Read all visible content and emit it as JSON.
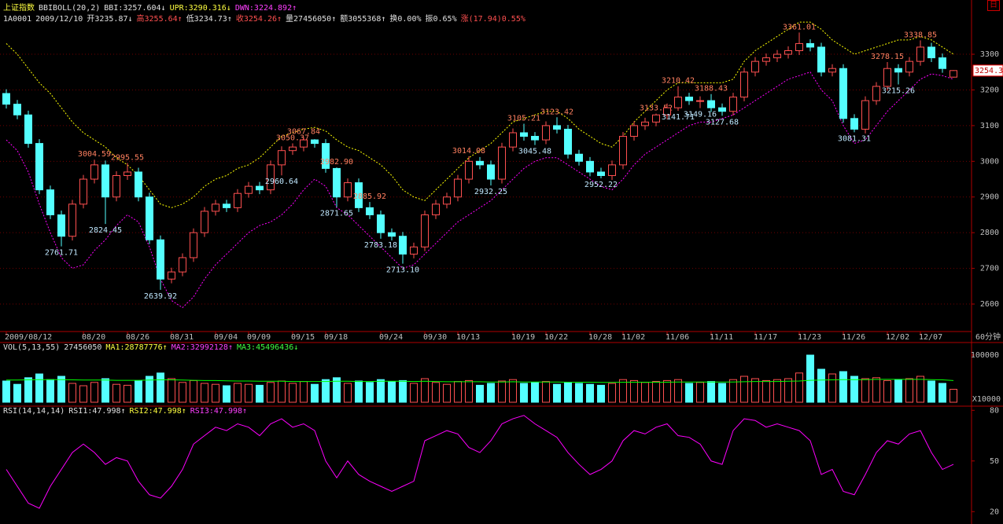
{
  "header": {
    "line1": [
      "上证指数",
      "BBIBOLL(20,2)",
      "BBI:3257.604↓",
      "UPR:3290.316↓",
      "DWN:3224.892↑"
    ],
    "line2": [
      "1A0001",
      "2009/12/10",
      "开3235.87↓",
      "高3255.64↑",
      "低3234.73↑",
      "收3254.26↑",
      "量27456050↑",
      "额3055368↑",
      "换0.00%",
      "振0.65%",
      "涨(17.94)0.55%"
    ],
    "vol": [
      "VOL(5,13,55)",
      "27456050",
      "MA1:28787776↑",
      "MA2:32992128↑",
      "MA3:45496436↓"
    ],
    "rsi": [
      "RSI(14,14,14)",
      "RSI1:47.998↑",
      "RSI2:47.998↑",
      "RSI3:47.998↑"
    ],
    "icon": "日"
  },
  "chart_data": [
    {
      "type": "candlestick",
      "period": "60分钟",
      "last_label": "3254.3",
      "up_color": "#ff5050",
      "down_color": "#54ffff",
      "categories": [
        "2009/08/12",
        null,
        null,
        null,
        null,
        null,
        null,
        "08/20",
        null,
        null,
        null,
        "08/26",
        null,
        null,
        null,
        "08/31",
        null,
        null,
        null,
        "09/04",
        null,
        null,
        "09/09",
        null,
        null,
        null,
        "09/15",
        null,
        null,
        "09/18",
        null,
        null,
        null,
        null,
        "09/24",
        null,
        null,
        null,
        "09/30",
        null,
        null,
        "10/13",
        null,
        null,
        null,
        null,
        "10/19",
        null,
        null,
        "10/22",
        null,
        null,
        null,
        "10/28",
        null,
        null,
        "11/02",
        null,
        null,
        null,
        "11/06",
        null,
        null,
        null,
        "11/11",
        null,
        null,
        null,
        "11/17",
        null,
        null,
        null,
        "11/23",
        null,
        null,
        null,
        "11/26",
        null,
        null,
        null,
        "12/02",
        null,
        null,
        "12/07",
        null,
        null,
        null
      ],
      "open": [
        3190,
        3160,
        3130,
        3050,
        2920,
        2850,
        2790,
        2880,
        2950,
        2990,
        2900,
        2960,
        2970,
        2900,
        2780,
        2670,
        2690,
        2730,
        2800,
        2860,
        2880,
        2870,
        2910,
        2930,
        2920,
        2990,
        3030,
        3040,
        3060,
        3050,
        2980,
        2900,
        2940,
        2870,
        2850,
        2800,
        2790,
        2740,
        2760,
        2850,
        2880,
        2900,
        2950,
        3000,
        2990,
        2950,
        3040,
        3080,
        3070,
        3060,
        3100,
        3090,
        3020,
        3000,
        2970,
        2960,
        2990,
        3070,
        3100,
        3110,
        3130,
        3150,
        3180,
        3170,
        3170,
        3150,
        3140,
        3180,
        3250,
        3280,
        3290,
        3300,
        3310,
        3330,
        3320,
        3250,
        3260,
        3120,
        3090,
        3170,
        3210,
        3260,
        3250,
        3280,
        3320,
        3290,
        3235.87
      ],
      "high": [
        3202,
        3172,
        3142,
        3062,
        2932,
        2862,
        2892,
        2962,
        3004.59,
        3002,
        2972,
        2995.55,
        2982,
        2912,
        2792,
        2702,
        2742,
        2812,
        2872,
        2892,
        2892,
        2922,
        2942,
        2942,
        3002,
        3042,
        3050.37,
        3067.84,
        3062,
        3062,
        2982.9,
        2952,
        2952,
        2885.92,
        2862,
        2812,
        2802,
        2772,
        2862,
        2892,
        2912,
        2962,
        3014.08,
        3012,
        3002,
        3052,
        3092,
        3105.21,
        3082,
        3112,
        3123.42,
        3102,
        3032,
        3012,
        2982,
        3002,
        3082,
        3112,
        3122,
        3133.52,
        3162,
        3210.42,
        3192,
        3182,
        3188.43,
        3162,
        3192,
        3262,
        3292,
        3302,
        3312,
        3322,
        3361.01,
        3342,
        3332,
        3272,
        3272,
        3132,
        3182,
        3222,
        3278.15,
        3272,
        3292,
        3338.85,
        3332,
        3302,
        3255.64
      ],
      "low": [
        3148,
        3118,
        3038,
        2908,
        2838,
        2761.71,
        2778,
        2868,
        2938,
        2824.45,
        2888,
        2948,
        2888,
        2768,
        2639.92,
        2658,
        2678,
        2718,
        2788,
        2848,
        2858,
        2858,
        2898,
        2908,
        2908,
        2960.64,
        3018,
        3028,
        3038,
        2968,
        2871.65,
        2888,
        2858,
        2838,
        2783.18,
        2778,
        2713.1,
        2728,
        2748,
        2838,
        2868,
        2888,
        2938,
        2978,
        2932.25,
        2938,
        3028,
        3058,
        3045.48,
        3048,
        3078,
        3008,
        2988,
        2958,
        2952.22,
        2948,
        2978,
        3058,
        3088,
        3098,
        3118,
        3141.71,
        3158,
        3149.16,
        3138,
        3127.68,
        3128,
        3168,
        3238,
        3268,
        3278,
        3288,
        3298,
        3308,
        3238,
        3238,
        3108,
        3081.31,
        3078,
        3158,
        3198,
        3215.26,
        3238,
        3268,
        3278,
        3248,
        3234.73
      ],
      "close": [
        3160,
        3130,
        3050,
        2920,
        2850,
        2790,
        2880,
        2950,
        2990,
        2900,
        2960,
        2970,
        2900,
        2780,
        2670,
        2690,
        2730,
        2800,
        2860,
        2880,
        2870,
        2910,
        2930,
        2920,
        2990,
        3030,
        3040,
        3060,
        3050,
        2980,
        2900,
        2940,
        2870,
        2850,
        2800,
        2790,
        2740,
        2760,
        2850,
        2880,
        2900,
        2950,
        3000,
        2990,
        2950,
        3040,
        3080,
        3070,
        3060,
        3100,
        3090,
        3020,
        3000,
        2970,
        2960,
        2990,
        3070,
        3100,
        3110,
        3130,
        3150,
        3180,
        3170,
        3170,
        3150,
        3140,
        3180,
        3250,
        3280,
        3290,
        3300,
        3310,
        3330,
        3320,
        3250,
        3260,
        3120,
        3090,
        3170,
        3210,
        3260,
        3250,
        3280,
        3320,
        3290,
        3260,
        3254.26
      ],
      "high_labels": [
        null,
        null,
        null,
        null,
        null,
        null,
        null,
        null,
        "3004.59",
        null,
        null,
        "2995.55",
        null,
        null,
        null,
        null,
        null,
        null,
        null,
        null,
        null,
        null,
        null,
        null,
        null,
        null,
        "3050.37",
        "3067.84",
        null,
        null,
        "2982.90",
        null,
        null,
        "2885.92",
        null,
        null,
        null,
        null,
        null,
        null,
        null,
        null,
        "3014.08",
        null,
        null,
        null,
        null,
        "3105.21",
        null,
        null,
        "3123.42",
        null,
        null,
        null,
        null,
        null,
        null,
        null,
        null,
        "3133.52",
        null,
        "3210.42",
        null,
        null,
        "3188.43",
        null,
        null,
        null,
        null,
        null,
        null,
        null,
        "3361.01",
        null,
        null,
        null,
        null,
        null,
        null,
        null,
        "3278.15",
        null,
        null,
        "3338.85",
        null,
        null,
        null
      ],
      "low_labels": [
        null,
        null,
        null,
        null,
        null,
        "2761.71",
        null,
        null,
        null,
        "2824.45",
        null,
        null,
        null,
        null,
        "2639.92",
        null,
        null,
        null,
        null,
        null,
        null,
        null,
        null,
        null,
        null,
        "2960.64",
        null,
        null,
        null,
        null,
        "2871.65",
        null,
        null,
        null,
        "2783.18",
        null,
        "2713.10",
        null,
        null,
        null,
        null,
        null,
        null,
        null,
        "2932.25",
        null,
        null,
        null,
        "3045.48",
        null,
        null,
        null,
        null,
        null,
        "2952.22",
        null,
        null,
        null,
        null,
        null,
        null,
        "3141.71",
        null,
        "3149.16",
        null,
        "3127.68",
        null,
        null,
        null,
        null,
        null,
        null,
        null,
        null,
        null,
        null,
        null,
        "3081.31",
        null,
        null,
        null,
        "3215.26",
        null,
        null,
        null,
        null,
        null
      ],
      "series": [
        {
          "color": "#ffff00",
          "values": [
            3330,
            3300,
            3260,
            3220,
            3190,
            3150,
            3110,
            3080,
            3060,
            3040,
            3010,
            2990,
            2960,
            2920,
            2880,
            2870,
            2880,
            2900,
            2930,
            2950,
            2960,
            2980,
            2990,
            3010,
            3040,
            3070,
            3080,
            3090,
            3095,
            3085,
            3060,
            3040,
            3030,
            3010,
            2990,
            2960,
            2920,
            2900,
            2890,
            2920,
            2950,
            2980,
            3010,
            3030,
            3050,
            3080,
            3110,
            3120,
            3130,
            3140,
            3140,
            3120,
            3090,
            3070,
            3050,
            3040,
            3070,
            3110,
            3140,
            3170,
            3200,
            3220,
            3220,
            3220,
            3220,
            3220,
            3230,
            3280,
            3310,
            3330,
            3350,
            3370,
            3390,
            3390,
            3370,
            3340,
            3320,
            3300,
            3310,
            3320,
            3330,
            3340,
            3340,
            3350,
            3340,
            3320,
            3300
          ]
        },
        {
          "color": "#ff00ff",
          "values": [
            3060,
            3030,
            2970,
            2880,
            2800,
            2730,
            2700,
            2710,
            2750,
            2780,
            2820,
            2850,
            2830,
            2760,
            2670,
            2610,
            2590,
            2620,
            2670,
            2710,
            2740,
            2770,
            2800,
            2820,
            2830,
            2850,
            2880,
            2920,
            2950,
            2930,
            2870,
            2850,
            2820,
            2790,
            2760,
            2730,
            2700,
            2710,
            2740,
            2770,
            2800,
            2830,
            2850,
            2870,
            2890,
            2920,
            2950,
            2980,
            3000,
            3010,
            3010,
            2990,
            2970,
            2950,
            2930,
            2920,
            2950,
            2990,
            3020,
            3040,
            3060,
            3080,
            3100,
            3110,
            3110,
            3120,
            3130,
            3150,
            3170,
            3190,
            3210,
            3230,
            3240,
            3250,
            3200,
            3170,
            3100,
            3050,
            3060,
            3100,
            3140,
            3170,
            3200,
            3230,
            3245,
            3240,
            3230
          ]
        }
      ],
      "ylim": [
        2523,
        3452
      ],
      "yticks": [
        2600,
        2700,
        2800,
        2900,
        3000,
        3100,
        3200,
        3300
      ],
      "grid": true
    },
    {
      "type": "bar",
      "unit_label": "X10000",
      "values": [
        45000,
        38000,
        52000,
        60000,
        48000,
        55000,
        40000,
        35000,
        42000,
        50000,
        38000,
        36000,
        45000,
        55000,
        62000,
        50000,
        42000,
        46000,
        40000,
        38000,
        35000,
        40000,
        38000,
        36000,
        42000,
        45000,
        40000,
        44000,
        38000,
        48000,
        52000,
        40000,
        45000,
        42000,
        48000,
        44000,
        46000,
        40000,
        50000,
        42000,
        38000,
        44000,
        46000,
        36000,
        40000,
        45000,
        48000,
        40000,
        42000,
        44000,
        38000,
        42000,
        40000,
        38000,
        36000,
        40000,
        48000,
        46000,
        42000,
        44000,
        46000,
        48000,
        40000,
        42000,
        44000,
        40000,
        48000,
        55000,
        50000,
        46000,
        48000,
        50000,
        62000,
        100000,
        70000,
        60000,
        65000,
        55000,
        50000,
        52000,
        46000,
        48000,
        50000,
        55000,
        45000,
        40000,
        27456
      ],
      "series": [
        {
          "color": "#00ff00",
          "values": [
            47000,
            47000,
            47500,
            48000,
            48000,
            48000,
            47500,
            47000,
            47000,
            47000,
            46500,
            46500,
            46500,
            47000,
            47500,
            47500,
            47000,
            46500,
            46000,
            46000,
            45500,
            45000,
            45000,
            44500,
            44500,
            44500,
            44000,
            44000,
            44000,
            44000,
            44500,
            44500,
            44000,
            44000,
            44500,
            44500,
            44500,
            44000,
            44500,
            44000,
            43500,
            43500,
            43500,
            43500,
            43000,
            43000,
            43500,
            43000,
            43000,
            43000,
            43000,
            42500,
            42500,
            42500,
            42000,
            42000,
            42500,
            42500,
            42500,
            42500,
            42500,
            43000,
            43000,
            43000,
            43000,
            43000,
            43000,
            43500,
            44000,
            44000,
            44000,
            44500,
            45000,
            46500,
            47000,
            47500,
            48000,
            48000,
            48000,
            48500,
            48500,
            48500,
            48500,
            48500,
            48000,
            47500,
            46000
          ]
        }
      ],
      "ylim": [
        0,
        125000
      ],
      "yticks": [
        100000
      ]
    },
    {
      "type": "line",
      "color": "#ff00ff",
      "values": [
        45,
        35,
        25,
        22,
        35,
        45,
        55,
        60,
        55,
        48,
        52,
        50,
        38,
        30,
        28,
        35,
        45,
        60,
        65,
        70,
        68,
        72,
        70,
        65,
        72,
        75,
        70,
        72,
        68,
        50,
        40,
        50,
        42,
        38,
        35,
        32,
        35,
        38,
        62,
        65,
        68,
        66,
        58,
        55,
        62,
        72,
        75,
        77,
        72,
        68,
        64,
        55,
        48,
        42,
        45,
        50,
        62,
        68,
        66,
        70,
        72,
        65,
        64,
        60,
        50,
        48,
        68,
        75,
        74,
        70,
        72,
        70,
        68,
        62,
        42,
        45,
        32,
        30,
        42,
        55,
        62,
        60,
        66,
        68,
        55,
        45,
        47.998
      ],
      "ylim": [
        15,
        82
      ],
      "yticks": [
        20,
        50,
        80
      ]
    }
  ]
}
